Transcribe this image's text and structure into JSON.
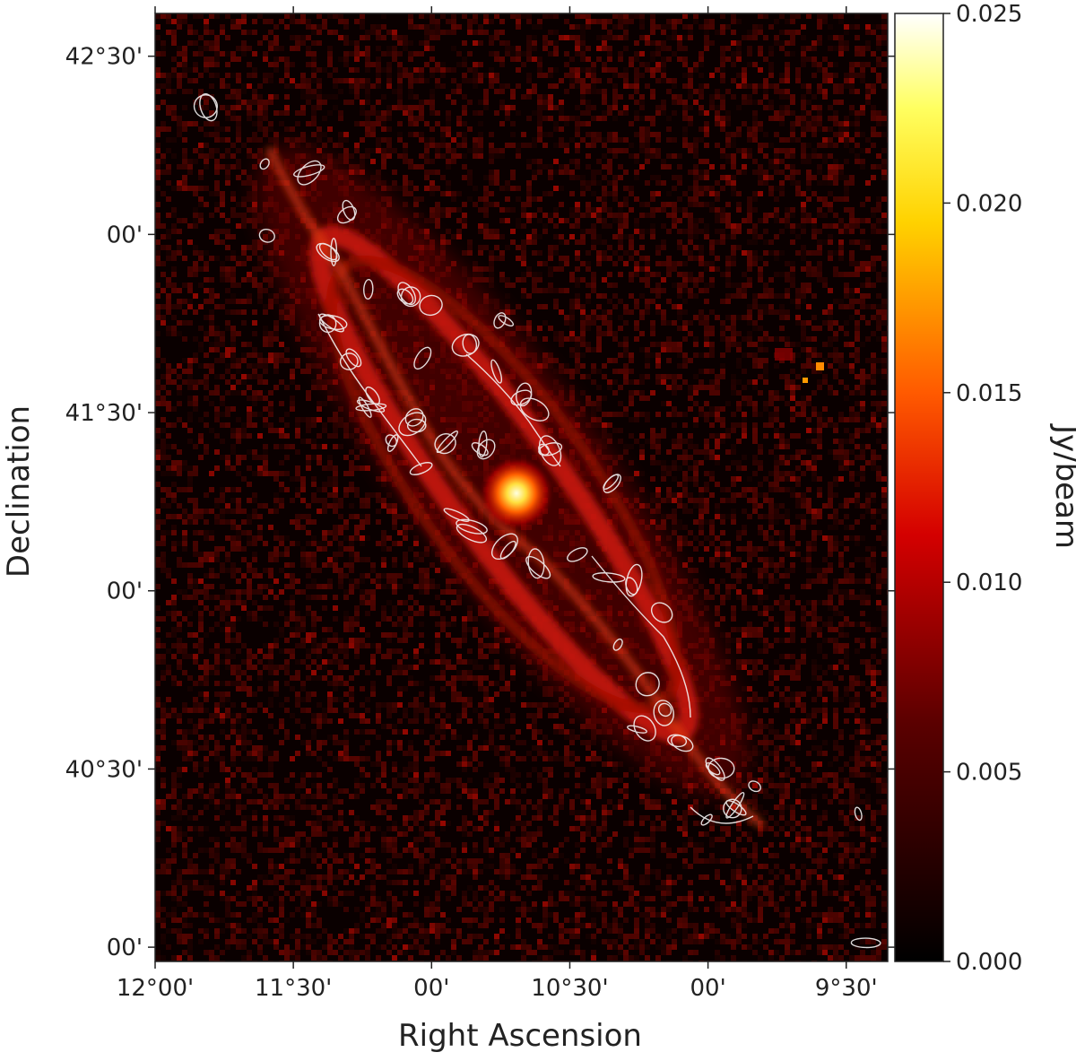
{
  "chart_data": {
    "type": "heatmap",
    "title": "",
    "xlabel": "Right Ascension",
    "ylabel": "Declination",
    "x_ticks": [
      "12°00'",
      "11°30'",
      "00'",
      "10°30'",
      "00'",
      "9°30'"
    ],
    "x_tick_values_deg": [
      12.0,
      11.5,
      11.0,
      10.5,
      10.0,
      9.5
    ],
    "xlim_deg": [
      12.0,
      9.35
    ],
    "x_inverted": true,
    "y_ticks": [
      "42°30'",
      "00'",
      "41°30'",
      "00'",
      "40°30'",
      "00'"
    ],
    "y_tick_values_deg": [
      42.5,
      42.0,
      41.5,
      41.0,
      40.5,
      40.0
    ],
    "ylim_deg": [
      39.96,
      42.62
    ],
    "colorbar": {
      "label": "Jy/beam",
      "ticks": [
        "0.000",
        "0.005",
        "0.010",
        "0.015",
        "0.020",
        "0.025"
      ],
      "tick_values": [
        0.0,
        0.005,
        0.01,
        0.015,
        0.02,
        0.025
      ],
      "range": [
        0.0,
        0.025
      ],
      "colormap": "afmhot-like (black → red → orange → yellow → white)"
    },
    "contours": {
      "color": "#ffffff",
      "present": true
    },
    "features": [
      {
        "feature": "bright central nucleus",
        "ra_deg": 10.69,
        "dec_deg": 41.27,
        "value": 0.025
      },
      {
        "feature": "compact source west of disk",
        "ra_deg": 9.55,
        "dec_deg": 41.62,
        "value": 0.016
      },
      {
        "feature": "dust ring / disk emission",
        "ra_deg_range": [
          11.3,
          9.9
        ],
        "value_range": [
          0.004,
          0.012
        ]
      }
    ]
  }
}
